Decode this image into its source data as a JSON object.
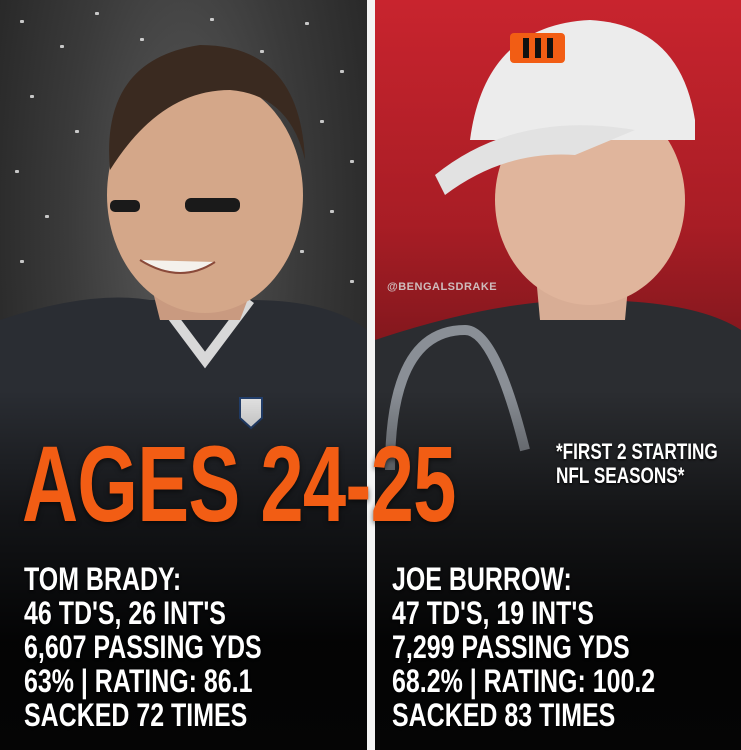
{
  "watermark": "@BENGALSDRAKE",
  "headline": "AGES 24-25",
  "footnote": {
    "line1": "*FIRST 2 STARTING",
    "line2": "NFL SEASONS*"
  },
  "left": {
    "name": "TOM BRADY:",
    "td_int": "46 TD'S, 26 INT'S",
    "yards": "6,607 PASSING YDS",
    "pct_rating": "63% | RATING: 86.1",
    "sacked": "SACKED 72 TIMES"
  },
  "right": {
    "name": "JOE BURROW:",
    "td_int": "47 TD'S, 19 INT'S",
    "yards": "7,299 PASSING YDS",
    "pct_rating": "68.2% | RATING: 100.2",
    "sacked": "SACKED 83 TIMES"
  },
  "colors": {
    "accent": "#f25d14",
    "text": "#ffffff",
    "bengals_red": "#c8242e"
  }
}
